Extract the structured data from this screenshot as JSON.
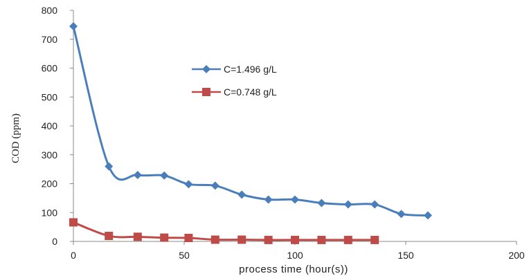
{
  "chart_data": {
    "type": "line",
    "xlabel": "process  time (hour(s))",
    "ylabel": "COD (ppm)",
    "xlim": [
      0,
      200
    ],
    "ylim": [
      0,
      800
    ],
    "x_ticks": [
      "0",
      "50",
      "100",
      "150",
      "200"
    ],
    "y_ticks": [
      "0",
      "100",
      "200",
      "300",
      "400",
      "500",
      "600",
      "700",
      "800"
    ],
    "grid": false,
    "legend_position": "center",
    "series": [
      {
        "name": "C=1.496 g/L",
        "color": "#4a7ebb",
        "marker": "diamond",
        "x": [
          0,
          16,
          29,
          41,
          52,
          64,
          76,
          88,
          100,
          112,
          124,
          136,
          148,
          160
        ],
        "y": [
          745,
          260,
          230,
          228,
          198,
          193,
          162,
          145,
          145,
          133,
          128,
          128,
          95,
          90
        ]
      },
      {
        "name": "C=0.748 g/L",
        "color": "#be4b48",
        "marker": "square",
        "x": [
          0,
          16,
          29,
          41,
          52,
          64,
          76,
          88,
          100,
          112,
          124,
          136
        ],
        "y": [
          66,
          19,
          16,
          13,
          12,
          6,
          6,
          5,
          5,
          5,
          5,
          5
        ]
      }
    ]
  }
}
